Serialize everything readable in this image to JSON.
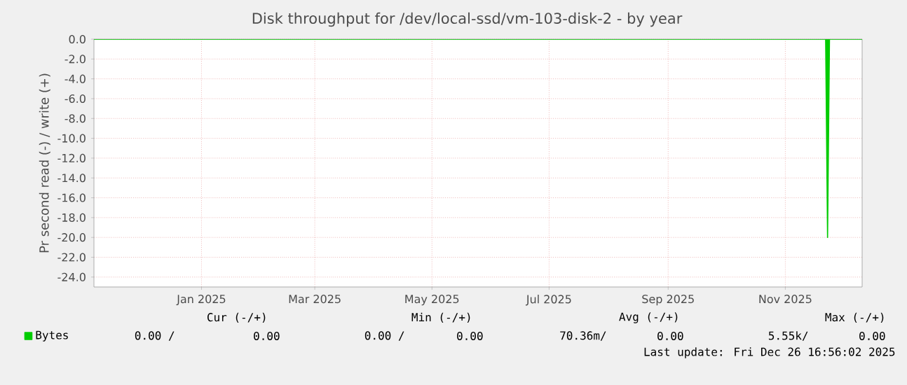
{
  "chart_data": {
    "type": "line",
    "title": "Disk throughput for /dev/local-ssd/vm-103-disk-2 - by year",
    "ylabel": "Pr second read (-) / write (+)",
    "x": [
      "2024-11-21",
      "2025-12-07",
      "2025-12-08",
      "2025-12-09",
      "2025-12-26"
    ],
    "series": [
      {
        "name": "Bytes",
        "color": "#00cc00",
        "values": [
          0,
          0,
          -20,
          0,
          0
        ]
      }
    ],
    "xlim": [
      "2024-11-21",
      "2025-12-26"
    ],
    "xticks": [
      {
        "value": "2025-01-16",
        "label": "Jan 2025"
      },
      {
        "value": "2025-03-16",
        "label": "Mar 2025"
      },
      {
        "value": "2025-05-16",
        "label": "May 2025"
      },
      {
        "value": "2025-07-16",
        "label": "Jul 2025"
      },
      {
        "value": "2025-09-16",
        "label": "Sep 2025"
      },
      {
        "value": "2025-11-16",
        "label": "Nov 2025"
      }
    ],
    "ylim": [
      -25,
      0
    ],
    "yticks": [
      {
        "value": 0,
        "label": "0.0"
      },
      {
        "value": -2,
        "label": "-2.0"
      },
      {
        "value": -4,
        "label": "-4.0"
      },
      {
        "value": -6,
        "label": "-6.0"
      },
      {
        "value": -8,
        "label": "-8.0"
      },
      {
        "value": -10,
        "label": "-10.0"
      },
      {
        "value": -12,
        "label": "-12.0"
      },
      {
        "value": -14,
        "label": "-14.0"
      },
      {
        "value": -16,
        "label": "-16.0"
      },
      {
        "value": -18,
        "label": "-18.0"
      },
      {
        "value": -20,
        "label": "-20.0"
      },
      {
        "value": -22,
        "label": "-22.0"
      },
      {
        "value": -24,
        "label": "-24.0"
      }
    ],
    "grid": true,
    "legend": "bottom left",
    "annotations": [
      "Cur (-/+)",
      "Min (-/+)",
      "Avg (-/+)",
      "Max (-/+)",
      "0.00 /",
      "0.00",
      "0.00 /",
      "0.00",
      "70.36m/",
      "0.00",
      "5.55k/",
      "0.00",
      "Last update: Fri Dec 26 16:56:02 2025"
    ]
  }
}
